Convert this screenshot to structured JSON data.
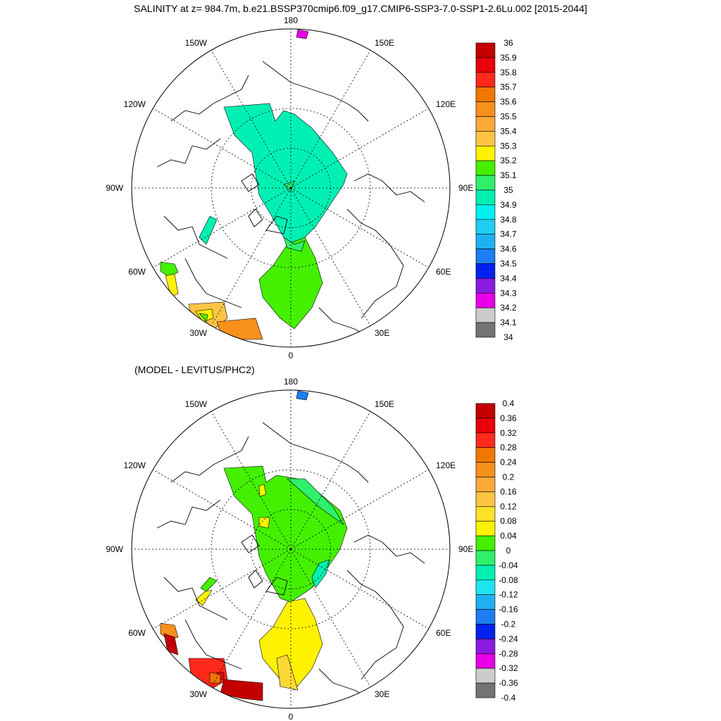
{
  "title": "SALINITY at z= 984.7m, b.e21.BSSP370cmip6.f09_g17.CMIP6-SSP3-7.0-SSP1-2.6Lu.002 [2015-2044]",
  "subtitle": "(MODEL - LEVITUS/PHC2)",
  "longitude_labels": [
    "180",
    "150E",
    "120E",
    "90E",
    "60E",
    "30E",
    "0",
    "30W",
    "60W",
    "90W",
    "120W",
    "150W"
  ],
  "panels": [
    {
      "name": "salinity",
      "colorbar": {
        "labels": [
          "36",
          "35.9",
          "35.8",
          "35.7",
          "35.6",
          "35.5",
          "35.4",
          "35.3",
          "35.2",
          "35.1",
          "35",
          "34.9",
          "34.8",
          "34.7",
          "34.6",
          "34.5",
          "34.4",
          "34.3",
          "34.2",
          "34.1",
          "34"
        ],
        "colors": [
          "#c40000",
          "#e8000b",
          "#ff2a1b",
          "#f07800",
          "#f8901c",
          "#fba838",
          "#fdc446",
          "#fff200",
          "#44f000",
          "#2ff06d",
          "#00f0b4",
          "#00f0f0",
          "#1ecef4",
          "#1fb0f4",
          "#1c7ef0",
          "#0022ee",
          "#8a1ae0",
          "#e600e6",
          "#cccccc",
          "#737373"
        ]
      },
      "fills": [
        {
          "color": "#00f0b4"
        },
        {
          "color": "#44f000"
        },
        {
          "color": "#2ff06d"
        },
        {
          "color": "#00f0b4"
        },
        {
          "color": "#44f000"
        },
        {
          "color": "#fff200"
        },
        {
          "color": "#fdc446"
        },
        {
          "color": "#fff200"
        },
        {
          "color": "#44f000"
        },
        {
          "color": "#f8901c"
        },
        {
          "color": "#2ff06d"
        },
        {
          "color": "#e600e6"
        }
      ]
    },
    {
      "name": "difference",
      "colorbar": {
        "labels": [
          "0.4",
          "0.36",
          "0.32",
          "0.28",
          "0.24",
          "0.2",
          "0.16",
          "0.12",
          "0.08",
          "0.04",
          "0",
          "-0.04",
          "-0.08",
          "-0.12",
          "-0.16",
          "-0.2",
          "-0.24",
          "-0.28",
          "-0.32",
          "-0.36",
          "-0.4"
        ],
        "colors": [
          "#c40000",
          "#e8000b",
          "#ff2a1b",
          "#f07800",
          "#f8901c",
          "#fba838",
          "#fdc446",
          "#fde028",
          "#fff200",
          "#44f000",
          "#2ff06d",
          "#00f0b4",
          "#1ee4f0",
          "#1fb0f4",
          "#1c7ef0",
          "#0022ee",
          "#8a1ae0",
          "#e600e6",
          "#cccccc",
          "#737373"
        ]
      },
      "fills": [
        {
          "color": "#44f000"
        },
        {
          "color": "#fff200"
        },
        {
          "color": "#fff200"
        },
        {
          "color": "#2ff06d"
        },
        {
          "color": "#00f0b4"
        },
        {
          "color": "#fff200"
        },
        {
          "color": "#fdd835"
        },
        {
          "color": "#44f000"
        },
        {
          "color": "#fff200"
        },
        {
          "color": "#f8901c"
        },
        {
          "color": "#c40000"
        },
        {
          "color": "#ff2a1b"
        },
        {
          "color": "#c40000"
        },
        {
          "color": "#e8000b"
        },
        {
          "color": "#f07800"
        },
        {
          "color": "#1c7ef0"
        }
      ]
    }
  ]
}
